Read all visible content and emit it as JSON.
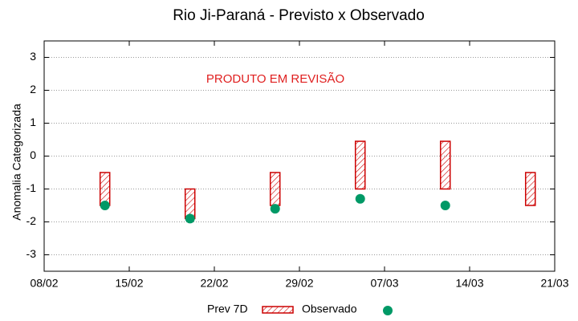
{
  "chart_data": {
    "type": "range-scatter",
    "title": "Rio Ji-Paraná - Previsto x Observado",
    "ylabel": "Anomalia Categorizada",
    "annotation": "PRODUTO EM REVISÃO",
    "xlim": [
      "08/02",
      "21/03"
    ],
    "xticks": [
      "08/02",
      "15/02",
      "22/02",
      "29/02",
      "07/03",
      "14/03",
      "21/03"
    ],
    "ylim": [
      -3.5,
      3.5
    ],
    "yticks": [
      -3,
      -2,
      -1,
      0,
      1,
      2,
      3
    ],
    "grid": true,
    "series": [
      {
        "name": "Prev 7D",
        "color": "#cc0000",
        "x": [
          "13/02",
          "20/02",
          "27/02",
          "05/03",
          "12/03",
          "19/03"
        ],
        "low": [
          -1.5,
          -1.9,
          -1.5,
          -1,
          -1,
          -1.5
        ],
        "high": [
          -0.5,
          -1,
          -0.5,
          0.45,
          0.45,
          -0.5
        ]
      },
      {
        "name": "Observado",
        "color": "#009966",
        "x": [
          "13/02",
          "20/02",
          "27/02",
          "05/03",
          "12/03"
        ],
        "values": [
          -1.5,
          -1.9,
          -1.6,
          -1.3,
          -1.5
        ]
      }
    ]
  }
}
